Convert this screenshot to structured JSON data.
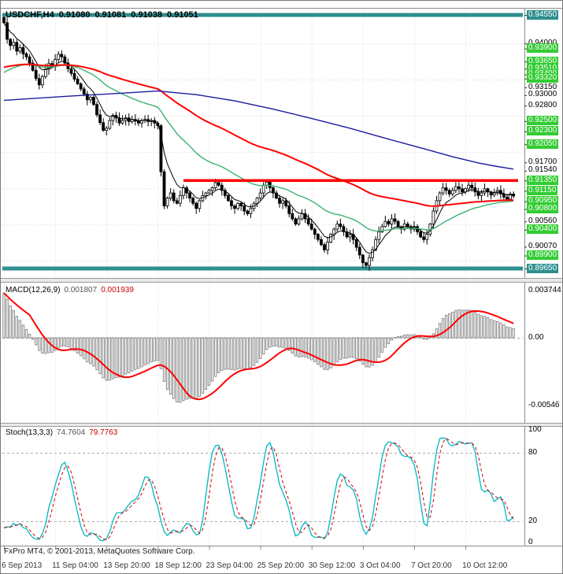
{
  "header": {
    "symbol": "USDCHF,H4",
    "open": "0.91080",
    "high": "0.91081",
    "low": "0.91038",
    "close": "0.91051"
  },
  "footer": {
    "copyright": "FxPro MT4, © 2001-2013, MetaQuotes Software Corp."
  },
  "colors": {
    "label_green": "#33cc33",
    "band_teal": "#2e8f8f",
    "line_red": "#ff0000",
    "ma_green": "#3cb371",
    "ma_blue": "#1c1c9e",
    "ma_black": "#000000",
    "stoch_main": "#00b8c4",
    "stoch_signal": "#d40000",
    "macd_hist": "#8c8c8c",
    "macd_signal": "#ff0000",
    "grid": "#dcdcdc",
    "frame": "#8a8a8a"
  },
  "price_axis": {
    "labels": [
      {
        "value": "0.94550",
        "style": "teal"
      },
      {
        "value": "0.94000",
        "style": "plain"
      },
      {
        "value": "0.93900",
        "style": "green"
      },
      {
        "value": "0.93650",
        "style": "green"
      },
      {
        "value": "0.93510",
        "style": "green"
      },
      {
        "value": "0.93400",
        "style": "green"
      },
      {
        "value": "0.93320",
        "style": "green"
      },
      {
        "value": "0.93150",
        "style": "plain"
      },
      {
        "value": "0.93000",
        "style": "plain"
      },
      {
        "value": "0.92800",
        "style": "plain"
      },
      {
        "value": "0.92500",
        "style": "green"
      },
      {
        "value": "0.92300",
        "style": "green"
      },
      {
        "value": "0.92050",
        "style": "green"
      },
      {
        "value": "0.91700",
        "style": "plain"
      },
      {
        "value": "0.91540",
        "style": "plain"
      },
      {
        "value": "0.91350",
        "style": "green"
      },
      {
        "value": "0.91150",
        "style": "green"
      },
      {
        "value": "0.90950",
        "style": "green"
      },
      {
        "value": "0.90800",
        "style": "green"
      },
      {
        "value": "0.90560",
        "style": "plain"
      },
      {
        "value": "0.90400",
        "style": "green"
      },
      {
        "value": "0.90070",
        "style": "plain"
      },
      {
        "value": "0.89900",
        "style": "green"
      },
      {
        "value": "0.89650",
        "style": "teal"
      }
    ]
  },
  "macd_panel": {
    "name": "MACD(12,26,9)",
    "value1": "0.001807",
    "value2": "0.001939",
    "axis_max": "0.003744",
    "axis_zero": "0.00",
    "axis_min": "-0.00546"
  },
  "stoch_panel": {
    "name": "Stoch(13,3,3)",
    "value1": "74.7604",
    "value2": "79.7763",
    "axis_100": "100",
    "axis_80": "80",
    "axis_20": "20",
    "axis_0": "0"
  },
  "chart_data": {
    "type": "candlestick",
    "symbol": "USDCHF",
    "timeframe": "H4",
    "title": "USDCHF,H4 0.91080 0.91081 0.91038 0.91051",
    "ylim": [
      0.8965,
      0.9455
    ],
    "bar_count": 160,
    "grid": true,
    "time_labels": [
      {
        "text": "6 Sep 2013",
        "bar": 0
      },
      {
        "text": "11 Sep 04:00",
        "bar": 16
      },
      {
        "text": "13 Sep 20:00",
        "bar": 32
      },
      {
        "text": "18 Sep 12:00",
        "bar": 48
      },
      {
        "text": "23 Sep 04:00",
        "bar": 64
      },
      {
        "text": "25 Sep 20:00",
        "bar": 80
      },
      {
        "text": "30 Sep 12:00",
        "bar": 96
      },
      {
        "text": "3 Oct 04:00",
        "bar": 112
      },
      {
        "text": "7 Oct 20:00",
        "bar": 128
      },
      {
        "text": "10 Oct 12:00",
        "bar": 144
      }
    ],
    "first_open": 0.945,
    "wick_amplitude": 0.0009,
    "wick_overrides": {
      "0": {
        "high": 0.9452
      },
      "113": {
        "low": 0.8966
      }
    },
    "closes": [
      0.944,
      0.9408,
      0.9396,
      0.9402,
      0.9385,
      0.9392,
      0.938,
      0.9374,
      0.9362,
      0.9348,
      0.9332,
      0.932,
      0.9336,
      0.935,
      0.9361,
      0.9355,
      0.9369,
      0.9379,
      0.9374,
      0.9362,
      0.9351,
      0.9342,
      0.9331,
      0.9322,
      0.9312,
      0.9302,
      0.9291,
      0.9296,
      0.9282,
      0.9262,
      0.9247,
      0.9232,
      0.9236,
      0.9251,
      0.9261,
      0.9256,
      0.9246,
      0.9251,
      0.9256,
      0.9249,
      0.9253,
      0.925,
      0.9246,
      0.9251,
      0.9253,
      0.9249,
      0.9251,
      0.9246,
      0.9241,
      0.9152,
      0.9086,
      0.9101,
      0.9111,
      0.9096,
      0.9091,
      0.9106,
      0.9121,
      0.9111,
      0.9101,
      0.9091,
      0.9081,
      0.9096,
      0.9106,
      0.9111,
      0.9116,
      0.9121,
      0.9131,
      0.9126,
      0.9116,
      0.9106,
      0.9096,
      0.9086,
      0.9081,
      0.9091,
      0.9086,
      0.9076,
      0.9071,
      0.9081,
      0.9091,
      0.9101,
      0.9111,
      0.9126,
      0.9132,
      0.9121,
      0.9111,
      0.9101,
      0.9091,
      0.9096,
      0.9086,
      0.9071,
      0.9061,
      0.9051,
      0.9061,
      0.9071,
      0.9061,
      0.9051,
      0.9041,
      0.9031,
      0.9021,
      0.9011,
      0.9001,
      0.9016,
      0.9031,
      0.9041,
      0.9051,
      0.9046,
      0.9036,
      0.9026,
      0.9031,
      0.9021,
      0.9006,
      0.8991,
      0.8976,
      0.8971,
      0.8986,
      0.9001,
      0.9021,
      0.9036,
      0.9046,
      0.9056,
      0.9051,
      0.9061,
      0.9056,
      0.9046,
      0.9041,
      0.9051,
      0.9046,
      0.9041,
      0.9046,
      0.9036,
      0.9026,
      0.9021,
      0.9031,
      0.9051,
      0.9076,
      0.9096,
      0.9111,
      0.9121,
      0.9116,
      0.9109,
      0.9116,
      0.9123,
      0.9119,
      0.9113,
      0.9119,
      0.9126,
      0.9121,
      0.9113,
      0.9106,
      0.9111,
      0.9119,
      0.9113,
      0.9107,
      0.9111,
      0.9116,
      0.9109,
      0.9103,
      0.9099,
      0.9109,
      0.91051
    ],
    "overlays": {
      "emas": [
        {
          "name": "ma-fast-black",
          "period": 7,
          "seed": 0.9438,
          "color": "#000000",
          "width": 1
        },
        {
          "name": "ma-mid-green",
          "period": 34,
          "seed": 0.9338,
          "color": "#3cb371",
          "width": 1.4
        },
        {
          "name": "ma-slow-red",
          "period": 85,
          "seed": 0.9352,
          "color": "#ff0000",
          "width": 2
        }
      ],
      "slowest_ma_keypoints": [
        [
          0,
          0.929
        ],
        [
          20,
          0.9298
        ],
        [
          40,
          0.9305
        ],
        [
          48,
          0.9308
        ],
        [
          60,
          0.9301
        ],
        [
          72,
          0.9289
        ],
        [
          84,
          0.9273
        ],
        [
          96,
          0.9255
        ],
        [
          108,
          0.9236
        ],
        [
          120,
          0.9215
        ],
        [
          132,
          0.9195
        ],
        [
          140,
          0.9181
        ],
        [
          148,
          0.9169
        ],
        [
          154,
          0.9162
        ],
        [
          159,
          0.9157
        ]
      ],
      "resistance_line": {
        "price": 0.9135,
        "start_bar": 56,
        "color": "#ff0000"
      },
      "bands": [
        {
          "price": 0.9455
        },
        {
          "price": 0.8965
        }
      ]
    },
    "indicators": [
      {
        "type": "macd",
        "fast": 12,
        "slow": 26,
        "signal": 9,
        "ylim": [
          -0.00546,
          0.003744
        ],
        "current": [
          0.001807,
          0.001939
        ]
      },
      {
        "type": "stochastic",
        "k_period": 13,
        "slowing": 3,
        "d_period": 3,
        "ylim": [
          0,
          100
        ],
        "guides": [
          80,
          20
        ],
        "current": [
          74.7604,
          79.7763
        ]
      }
    ]
  }
}
